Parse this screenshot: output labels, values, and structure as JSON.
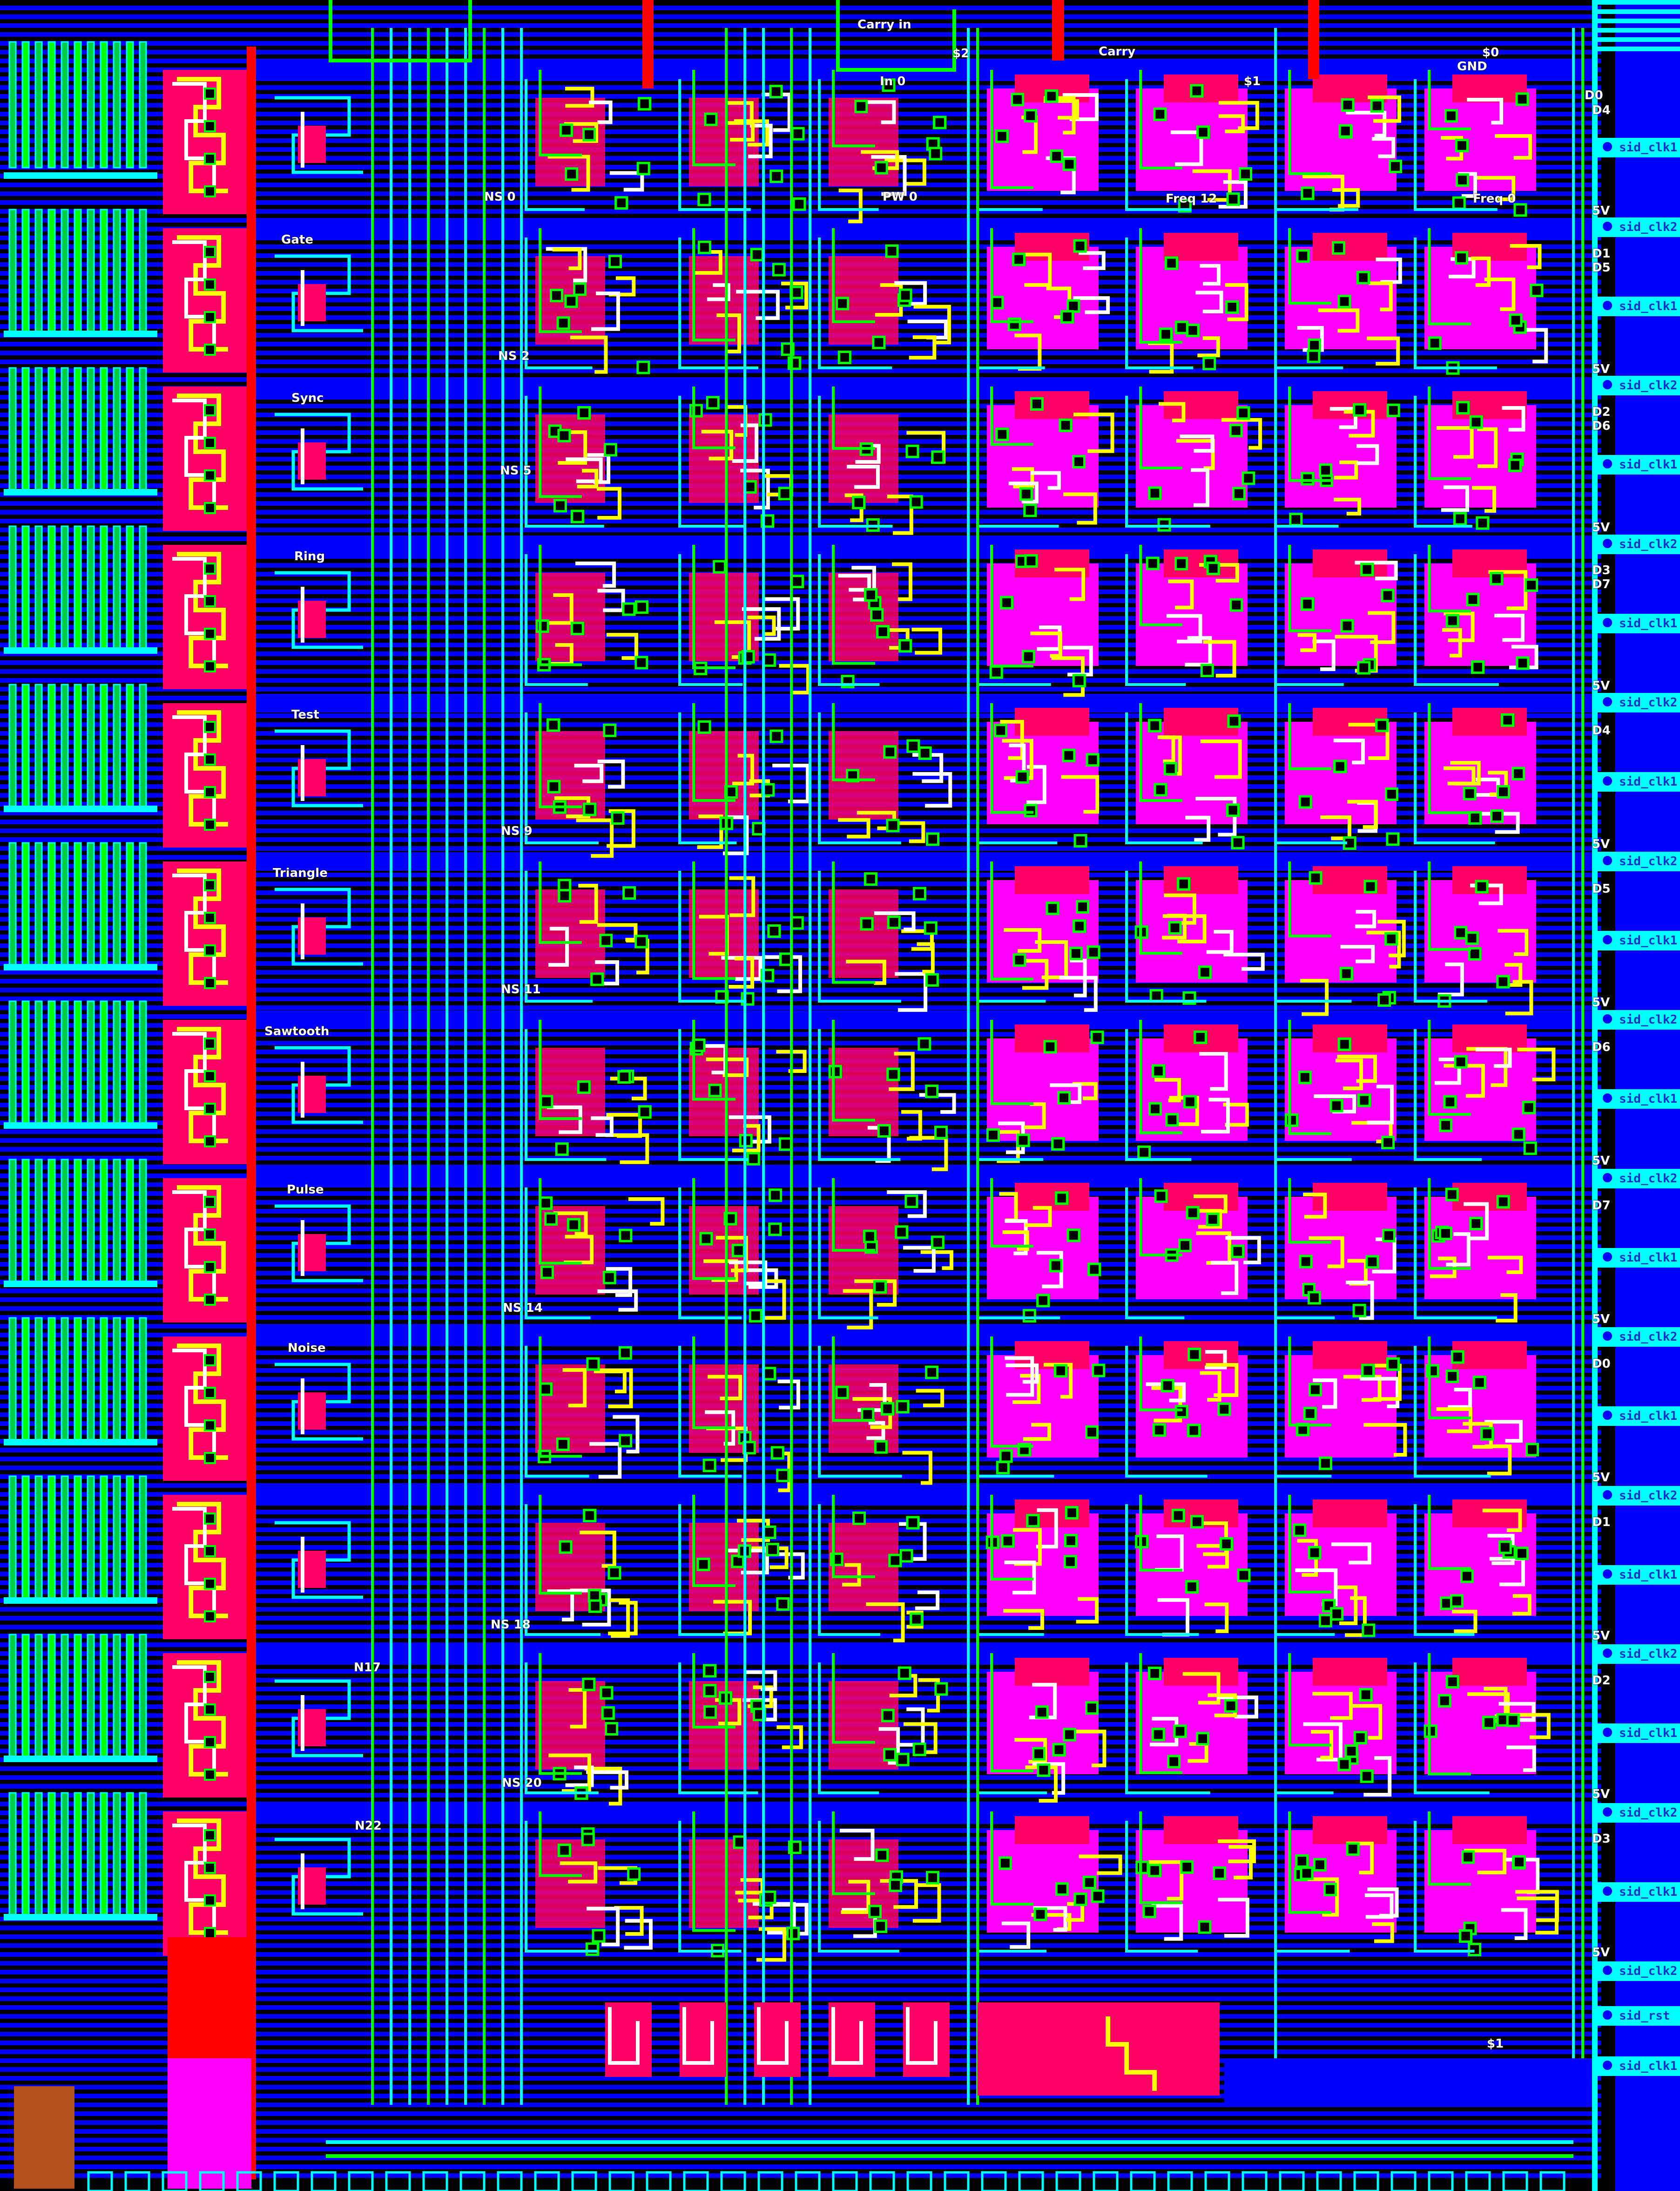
{
  "colors": {
    "background": "#000000",
    "metal": "#0000ff",
    "metal_bright": "#00ffff",
    "poly": "#ff0066",
    "diffusion": "#ff00ff",
    "green_poly": "#00ff00",
    "contact": "#ffff00",
    "highlight": "#ffffff",
    "red": "#ff0000"
  },
  "top_labels": {
    "carry_in": "Carry in",
    "s2": "$2",
    "carry": "Carry",
    "s0": "$0",
    "in0": "In 0",
    "s1_top": "$1",
    "gnd": "GND",
    "ns0": "NS 0",
    "pw0": "PW 0",
    "freq12": "Freq 12",
    "freq0": "Freq 0"
  },
  "left_labels": {
    "gate": "Gate",
    "sync": "Sync",
    "ring": "Ring",
    "test": "Test",
    "triangle": "Triangle",
    "sawtooth": "Sawtooth",
    "pulse": "Pulse",
    "noise": "Noise",
    "n17": "N17",
    "n22": "N22"
  },
  "ns_labels": {
    "ns2": "NS 2",
    "ns5": "NS 5",
    "ns9": "NS 9",
    "ns11": "NS 11",
    "ns14": "NS 14",
    "ns18": "NS 18",
    "ns20": "NS 20"
  },
  "right_labels": {
    "d0a": "D0",
    "d4a": "D4",
    "d1a": "D1",
    "d5": "D5",
    "d2a": "D2",
    "d6a": "D6",
    "d3a": "D3",
    "d7a": "D7",
    "d4b": "D4",
    "d5b": "D5",
    "d6b": "D6",
    "d7b": "D7",
    "d0b": "D0",
    "d1b": "D1",
    "d2b": "D2",
    "d3b": "D3",
    "v5": "5V",
    "s1_bottom": "$1"
  },
  "side_tabs": [
    "sid_clk1",
    "sid_clk2",
    "sid_clk1",
    "sid_clk2",
    "sid_clk1",
    "sid_clk2",
    "sid_clk1",
    "sid_clk2",
    "sid_clk1",
    "sid_clk2",
    "sid_clk1",
    "sid_clk2",
    "sid_clk1",
    "sid_clk2",
    "sid_clk1",
    "sid_clk2",
    "sid_clk1",
    "sid_clk2",
    "sid_clk1",
    "sid_clk2",
    "sid_clk1",
    "sid_clk2",
    "sid_clk1",
    "sid_clk2",
    "sid_rst",
    "sid_clk1"
  ]
}
